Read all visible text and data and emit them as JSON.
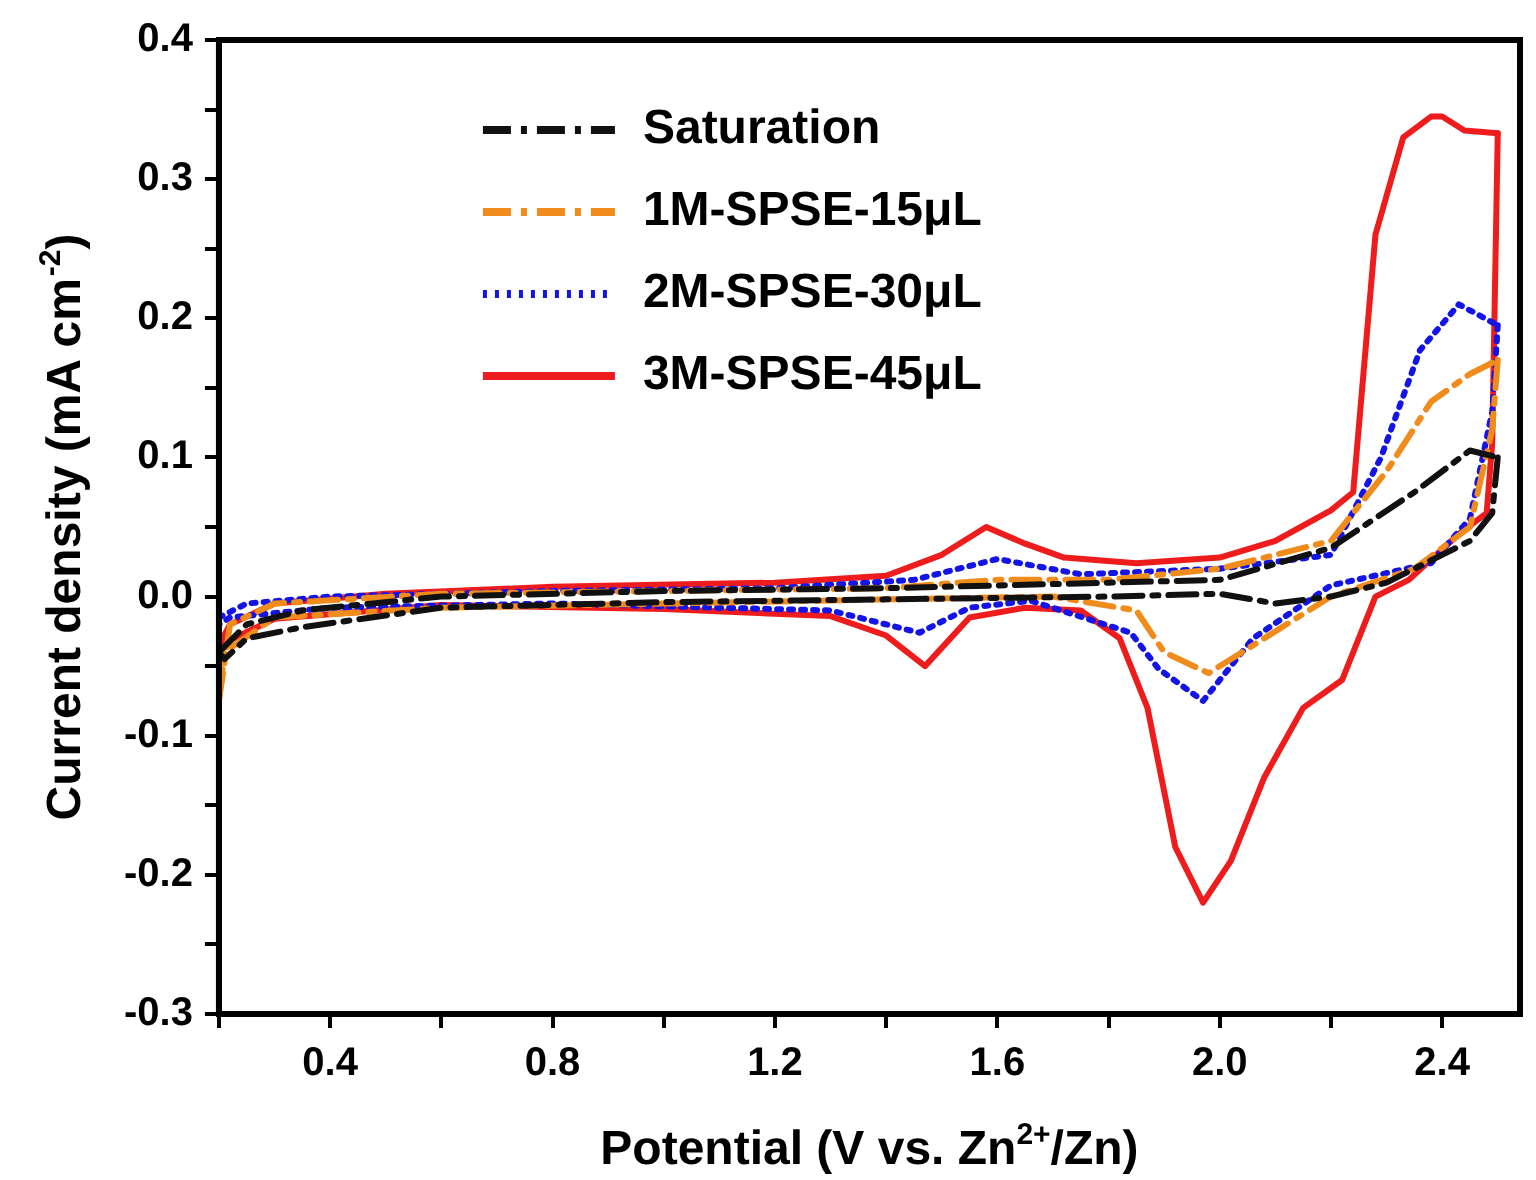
{
  "chart_data": {
    "type": "line",
    "xlabel": "Potential (V vs. Zn$^{2+}$/Zn)",
    "ylabel": "Current density (mA cm$^{-2}$)",
    "xlim": [
      0.2,
      2.54
    ],
    "ylim": [
      -0.3,
      0.4
    ],
    "xticks": [
      {
        "value": 0.2,
        "label": null
      },
      0.4,
      {
        "value": 0.6,
        "label": null
      },
      0.8,
      {
        "value": 1.0,
        "label": null
      },
      1.2,
      {
        "value": 1.4,
        "label": null
      },
      1.6,
      {
        "value": 1.8,
        "label": null
      },
      {
        "value": 2.0,
        "label": "2.0"
      },
      {
        "value": 2.2,
        "label": null
      },
      2.4
    ],
    "yticks": [
      -0.3,
      {
        "value": -0.25,
        "label": null
      },
      -0.2,
      {
        "value": -0.15,
        "label": null
      },
      -0.1,
      {
        "value": -0.05,
        "label": null
      },
      {
        "value": 0,
        "label": "0.0"
      },
      {
        "value": 0.05,
        "label": null
      },
      0.1,
      {
        "value": 0.15,
        "label": null
      },
      0.2,
      {
        "value": 0.25,
        "label": null
      },
      0.3,
      {
        "value": 0.35,
        "label": null
      },
      0.4
    ],
    "grid": false,
    "legend": "top left",
    "marker": "none",
    "series": [
      {
        "name": "Saturation",
        "color": "#111111",
        "line_style": "dashdot",
        "x": [
          0.2,
          0.25,
          0.35,
          0.6,
          1.0,
          1.4,
          1.8,
          2.0,
          2.2,
          2.35,
          2.45,
          2.5
        ],
        "values": [
          -0.04,
          -0.02,
          -0.01,
          0.0,
          0.004,
          0.006,
          0.01,
          0.012,
          0.035,
          0.075,
          0.105,
          0.1
        ]
      },
      {
        "color": "#111111",
        "line_style": "dashdot",
        "x": [
          2.5,
          2.49,
          2.45,
          2.4,
          2.3,
          2.2,
          2.1,
          2.0,
          1.8,
          1.4,
          1.0,
          0.6,
          0.35,
          0.25,
          0.21,
          0.2
        ],
        "values": [
          0.1,
          0.06,
          0.04,
          0.03,
          0.01,
          0.0,
          -0.005,
          0.002,
          0.0,
          -0.002,
          -0.004,
          -0.008,
          -0.022,
          -0.03,
          -0.045,
          -0.04
        ]
      },
      {
        "name": "1M-SPSE-15μL",
        "color": "#f08c1c",
        "line_style": "dashdot",
        "x": [
          0.2,
          0.22,
          0.3,
          0.6,
          1.0,
          1.4,
          1.6,
          1.8,
          2.0,
          2.2,
          2.3,
          2.38,
          2.45,
          2.5
        ],
        "values": [
          -0.075,
          -0.02,
          -0.005,
          0.002,
          0.004,
          0.006,
          0.012,
          0.012,
          0.02,
          0.04,
          0.09,
          0.14,
          0.16,
          0.17
        ]
      },
      {
        "color": "#f08c1c",
        "line_style": "dashdot",
        "x": [
          2.5,
          2.49,
          2.45,
          2.35,
          2.2,
          2.1,
          1.98,
          1.9,
          1.85,
          1.7,
          1.4,
          1.0,
          0.6,
          0.3,
          0.21,
          0.2
        ],
        "values": [
          0.17,
          0.12,
          0.05,
          0.02,
          0.0,
          -0.025,
          -0.055,
          -0.04,
          -0.01,
          0.0,
          -0.002,
          -0.005,
          -0.008,
          -0.015,
          -0.04,
          -0.075
        ]
      },
      {
        "name": "2M-SPSE-30μL",
        "color": "#1414e6",
        "line_style": "dotted",
        "x": [
          0.2,
          0.25,
          0.4,
          0.8,
          1.2,
          1.45,
          1.6,
          1.75,
          2.0,
          2.2,
          2.29,
          2.36,
          2.43,
          2.5
        ],
        "values": [
          -0.015,
          -0.005,
          0.0,
          0.004,
          0.006,
          0.012,
          0.027,
          0.016,
          0.02,
          0.03,
          0.1,
          0.177,
          0.21,
          0.195
        ]
      },
      {
        "color": "#1414e6",
        "line_style": "dotted",
        "x": [
          2.5,
          2.49,
          2.45,
          2.38,
          2.2,
          2.06,
          1.97,
          1.89,
          1.84,
          1.66,
          1.55,
          1.46,
          1.3,
          0.8,
          0.4,
          0.22,
          0.2
        ],
        "values": [
          0.195,
          0.133,
          0.056,
          0.024,
          0.008,
          -0.03,
          -0.075,
          -0.052,
          -0.026,
          -0.003,
          -0.008,
          -0.026,
          -0.01,
          -0.005,
          -0.008,
          -0.015,
          -0.02
        ]
      },
      {
        "name": "3M-SPSE-45μL",
        "color": "#ee1c1c",
        "line_style": "solid",
        "x": [
          0.2,
          0.22,
          0.3,
          0.5,
          0.8,
          1.2,
          1.4,
          1.5,
          1.58,
          1.65,
          1.72,
          1.85,
          2.0,
          2.1,
          2.2,
          2.24,
          2.28,
          2.33,
          2.38,
          2.4,
          2.44,
          2.5
        ],
        "values": [
          -0.035,
          -0.02,
          -0.005,
          0.002,
          0.007,
          0.01,
          0.015,
          0.03,
          0.05,
          0.038,
          0.028,
          0.024,
          0.028,
          0.04,
          0.062,
          0.075,
          0.26,
          0.33,
          0.345,
          0.345,
          0.335,
          0.333
        ]
      },
      {
        "color": "#ee1c1c",
        "line_style": "solid",
        "x": [
          2.5,
          2.49,
          2.48,
          2.43,
          2.34,
          2.28,
          2.25,
          2.22,
          2.15,
          2.08,
          2.02,
          1.97,
          1.92,
          1.87,
          1.82,
          1.75,
          1.65,
          1.55,
          1.47,
          1.4,
          1.3,
          1.0,
          0.6,
          0.3,
          0.2
        ],
        "values": [
          0.333,
          0.11,
          0.06,
          0.045,
          0.012,
          0.0,
          -0.03,
          -0.06,
          -0.08,
          -0.13,
          -0.19,
          -0.22,
          -0.18,
          -0.08,
          -0.03,
          -0.01,
          -0.008,
          -0.015,
          -0.05,
          -0.028,
          -0.014,
          -0.009,
          -0.006,
          -0.016,
          -0.035
        ]
      }
    ]
  }
}
